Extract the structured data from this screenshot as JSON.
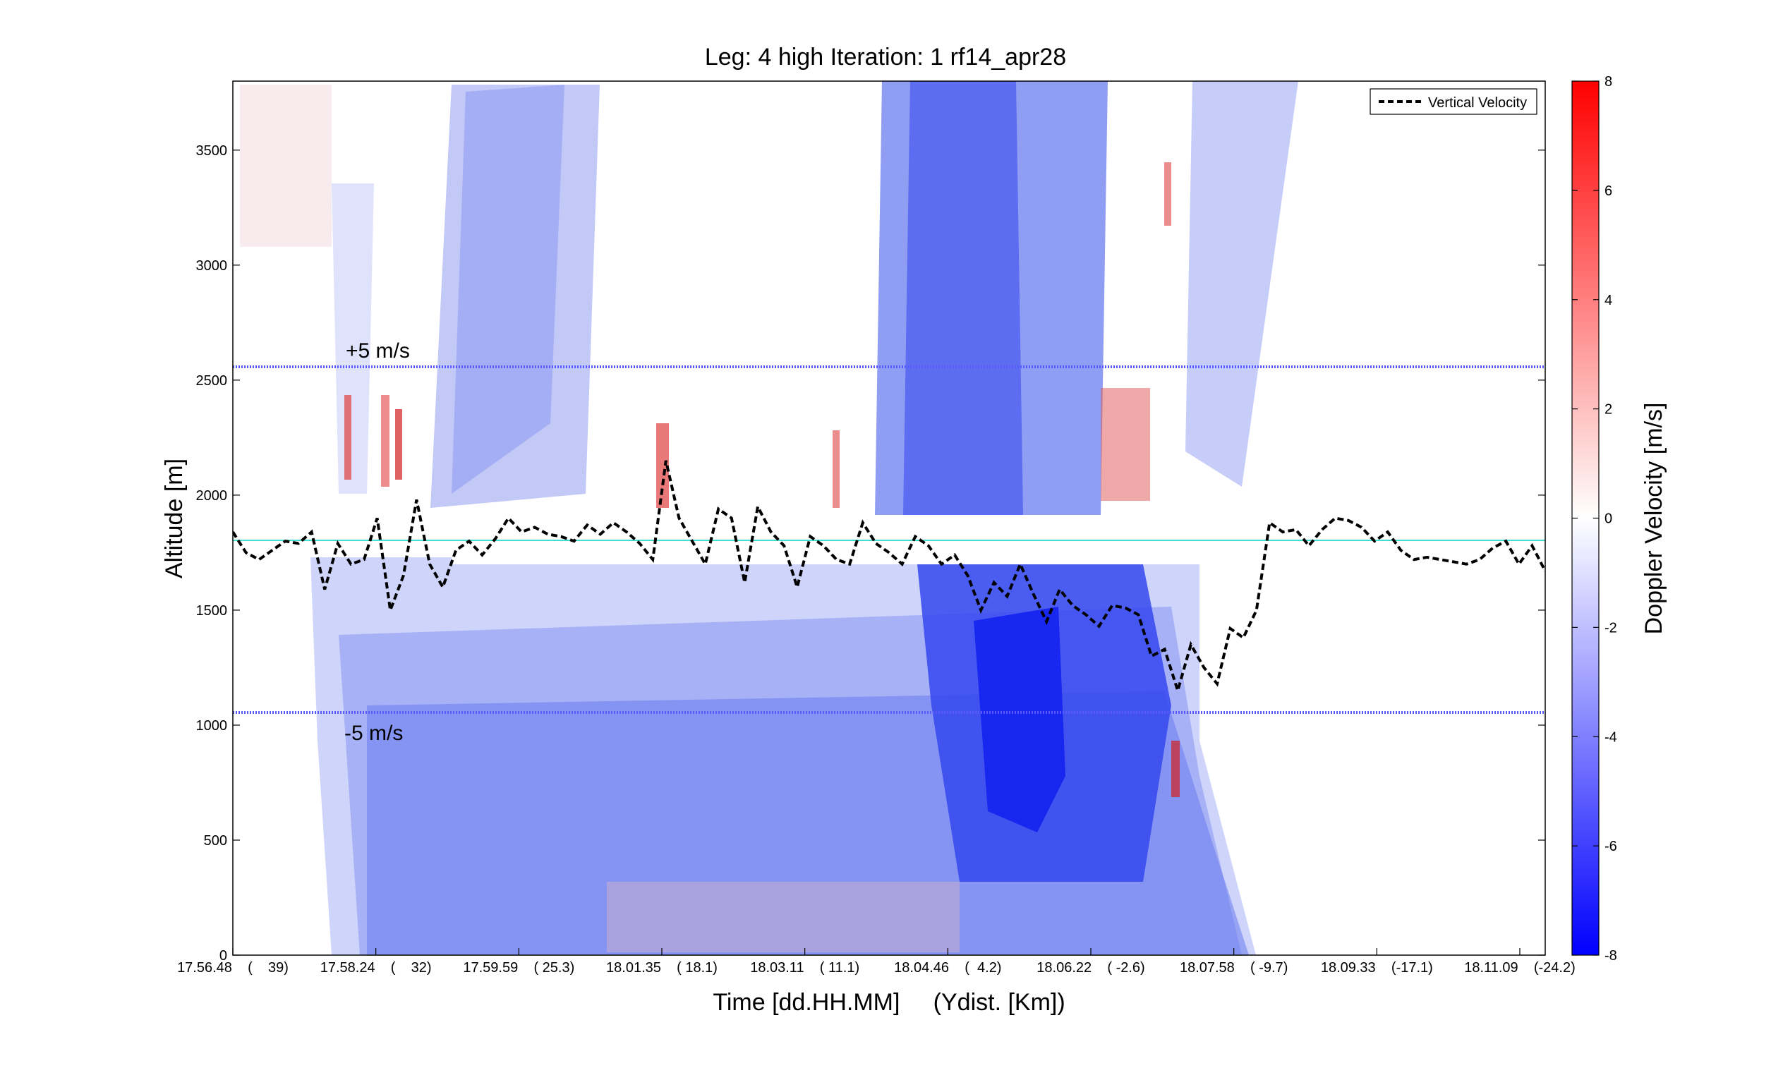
{
  "chart_data": {
    "type": "heatmap",
    "title": "Leg: 4 high Iteration: 1  rf14_apr28",
    "xlabel": "Time [dd.HH.MM]     (Ydist. [Km])",
    "ylabel": "Altitude [m]",
    "ylim": [
      0,
      3800
    ],
    "yticks": [
      0,
      500,
      1000,
      1500,
      2000,
      2500,
      3000,
      3500
    ],
    "xtick_labels": [
      "17.56.48    (    39)",
      "17.58.24    (    32)",
      "17.59.59    ( 25.3)",
      "18.01.35    ( 18.1)",
      "18.03.11    ( 11.1)",
      "18.04.46    (  4.2)",
      "18.06.22    ( -2.6)",
      "18.07.58    ( -9.7)",
      "18.09.33    (-17.1)",
      "18.11.09    (-24.2)"
    ],
    "colorbar": {
      "label": "Doppler Velocity [m/s]",
      "range": [
        -8,
        8
      ],
      "ticks": [
        -8,
        -6,
        -4,
        -2,
        0,
        2,
        4,
        6,
        8
      ],
      "colormap": "blue-white-red",
      "low_color": "#0000ff",
      "mid_color": "#ffffff",
      "high_color": "#ff0000"
    },
    "legend": {
      "position": "top-right",
      "entries": [
        "Vertical Velocity"
      ]
    },
    "reference_lines": [
      {
        "label": "+5 m/s",
        "altitude": 2555,
        "color": "#5a5aff",
        "style": "dotted"
      },
      {
        "label": "-5 m/s",
        "altitude": 1055,
        "color": "#5a5aff",
        "style": "dotted"
      },
      {
        "label": "",
        "altitude": 1805,
        "color": "#40e0d0",
        "style": "solid"
      }
    ],
    "series": [
      {
        "name": "Vertical Velocity",
        "style": "dashed",
        "color": "#000000",
        "x": [
          0.0,
          0.01,
          0.02,
          0.03,
          0.04,
          0.05,
          0.06,
          0.07,
          0.08,
          0.09,
          0.1,
          0.11,
          0.12,
          0.13,
          0.14,
          0.15,
          0.16,
          0.17,
          0.18,
          0.19,
          0.2,
          0.21,
          0.22,
          0.23,
          0.24,
          0.25,
          0.26,
          0.27,
          0.28,
          0.29,
          0.3,
          0.31,
          0.32,
          0.33,
          0.34,
          0.35,
          0.36,
          0.37,
          0.38,
          0.39,
          0.4,
          0.41,
          0.42,
          0.43,
          0.44,
          0.45,
          0.46,
          0.47,
          0.48,
          0.49,
          0.5,
          0.51,
          0.52,
          0.53,
          0.54,
          0.55,
          0.56,
          0.57,
          0.58,
          0.59,
          0.6,
          0.61,
          0.62,
          0.63,
          0.64,
          0.65,
          0.66,
          0.67,
          0.68,
          0.69,
          0.7,
          0.71,
          0.72,
          0.73,
          0.74,
          0.75,
          0.76,
          0.77,
          0.78,
          0.79,
          0.8,
          0.81,
          0.82,
          0.83,
          0.84,
          0.85,
          0.86,
          0.87,
          0.88,
          0.89,
          0.9,
          0.91,
          0.92,
          0.93,
          0.94,
          0.95,
          0.96,
          0.97,
          0.98,
          0.99,
          1.0
        ],
        "y": [
          1840,
          1750,
          1720,
          1760,
          1800,
          1790,
          1840,
          1590,
          1790,
          1700,
          1720,
          1900,
          1500,
          1650,
          1980,
          1700,
          1600,
          1760,
          1800,
          1740,
          1810,
          1900,
          1840,
          1860,
          1830,
          1820,
          1800,
          1870,
          1830,
          1880,
          1840,
          1790,
          1720,
          2150,
          1900,
          1800,
          1700,
          1940,
          1900,
          1620,
          1950,
          1840,
          1780,
          1600,
          1820,
          1780,
          1720,
          1700,
          1880,
          1790,
          1750,
          1700,
          1820,
          1780,
          1700,
          1740,
          1650,
          1500,
          1620,
          1560,
          1700,
          1570,
          1450,
          1590,
          1520,
          1480,
          1430,
          1520,
          1510,
          1480,
          1300,
          1330,
          1150,
          1350,
          1250,
          1180,
          1420,
          1380,
          1500,
          1880,
          1840,
          1850,
          1780,
          1850,
          1900,
          1890,
          1860,
          1800,
          1840,
          1760,
          1720,
          1730,
          1720,
          1710,
          1700,
          1720,
          1770,
          1800,
          1700,
          1780,
          1670
        ]
      }
    ]
  },
  "page": {
    "ref_plus_label": "+5 m/s",
    "ref_minus_label": "-5 m/s"
  }
}
